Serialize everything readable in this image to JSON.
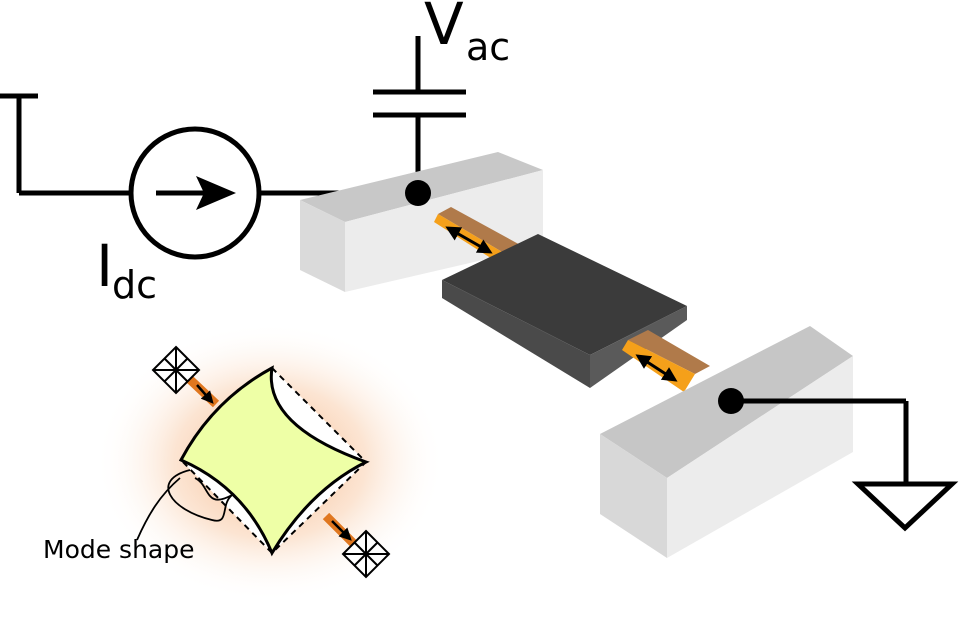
{
  "labels": {
    "voltage_main": "V",
    "voltage_sub": "ac",
    "current_main": "I",
    "current_sub": "dc",
    "mode_shape": "Mode shape"
  },
  "colors": {
    "wire": "#000000",
    "anchor_top": "#c6c6c6",
    "anchor_front": "#e2e2e2",
    "anchor_side": "#d2d2d2",
    "plate_top": "#3a3a3a",
    "plate_side": "#555555",
    "beam": "#d98a2a",
    "beam_edge": "#f29a18",
    "mode_fill": "#eeffa6",
    "glow": "#f7c39a"
  }
}
